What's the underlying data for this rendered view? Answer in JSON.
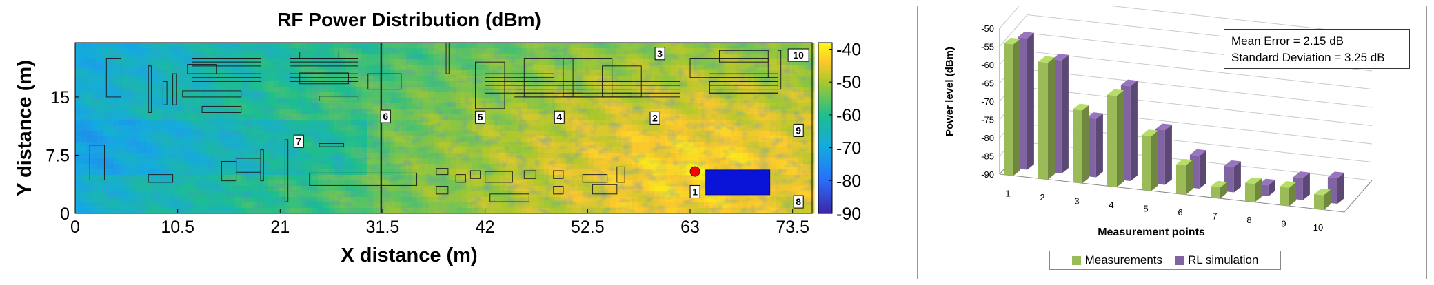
{
  "chart_data": [
    {
      "type": "heatmap",
      "title": "RF Power Distribution (dBm)",
      "xlabel": "X distance (m)",
      "ylabel": "Y distance (m)",
      "xlim": [
        0,
        75.5
      ],
      "ylim": [
        0,
        22
      ],
      "x_ticks": [
        "0",
        "10.5",
        "21",
        "31.5",
        "42",
        "52.5",
        "63",
        "73.5"
      ],
      "x_tick_values": [
        0,
        10.5,
        21,
        31.5,
        42,
        52.5,
        63,
        73.5
      ],
      "y_ticks": [
        "0",
        "7.5",
        "15"
      ],
      "y_tick_values": [
        0,
        7.5,
        15
      ],
      "colorbar": {
        "ticks": [
          "-40",
          "-50",
          "-60",
          "-70",
          "-80",
          "-90"
        ],
        "tick_values": [
          -40,
          -50,
          -60,
          -70,
          -80,
          -90
        ],
        "range": [
          -90,
          -38
        ]
      },
      "transmitter": {
        "x": 63.5,
        "y": 5.4,
        "color": "#ff0000"
      },
      "measurement_points": [
        {
          "label": "1",
          "x": 63.5,
          "y": 2.8
        },
        {
          "label": "2",
          "x": 59.4,
          "y": 12.3
        },
        {
          "label": "3",
          "x": 59.9,
          "y": 20.6
        },
        {
          "label": "4",
          "x": 49.6,
          "y": 12.4
        },
        {
          "label": "5",
          "x": 41.5,
          "y": 12.4
        },
        {
          "label": "6",
          "x": 31.8,
          "y": 12.5
        },
        {
          "label": "7",
          "x": 22.9,
          "y": 9.3
        },
        {
          "label": "8",
          "x": 74.1,
          "y": 1.5
        },
        {
          "label": "9",
          "x": 74.1,
          "y": 10.7
        },
        {
          "label": "10",
          "x": 74.1,
          "y": 20.4
        }
      ]
    },
    {
      "type": "bar",
      "xlabel": "Measurement points",
      "ylabel": "Power level (dBm)",
      "ylim": [
        -90,
        -50
      ],
      "y_ticks": [
        "-50",
        "-55",
        "-60",
        "-65",
        "-70",
        "-75",
        "-80",
        "-85",
        "-90"
      ],
      "y_tick_values": [
        -50,
        -55,
        -60,
        -65,
        -70,
        -75,
        -80,
        -85,
        -90
      ],
      "categories": [
        "1",
        "2",
        "3",
        "4",
        "5",
        "6",
        "7",
        "8",
        "9",
        "10"
      ],
      "series": [
        {
          "name": "Measurements",
          "color": "#9bbb59",
          "values": [
            -54,
            -58,
            -70,
            -65,
            -75,
            -82,
            -87,
            -85,
            -85,
            -86
          ]
        },
        {
          "name": "RL simulation",
          "color": "#8064a2",
          "values": [
            -54,
            -59,
            -74,
            -64,
            -75,
            -81,
            -83,
            -87,
            -84,
            -83
          ]
        }
      ],
      "annotation": [
        "Mean Error = 2.15 dB",
        "Standard Deviation = 3.25 dB"
      ],
      "legend_position": "bottom",
      "grid": true
    }
  ]
}
